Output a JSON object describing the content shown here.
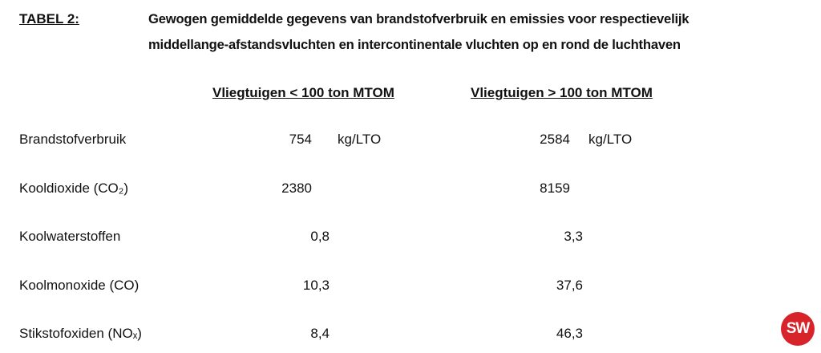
{
  "header": {
    "label": "TABEL 2:",
    "title_lines": [
      "Gewogen gemiddelde gegevens van brandstofverbruik en emissies voor respectievelijk",
      "middellange-afstandsvluchten en intercontinentale vluchten op en rond de luchthaven"
    ]
  },
  "table": {
    "columns": [
      "Vliegtuigen < 100 ton MTOM",
      "Vliegtuigen > 100 ton MTOM"
    ],
    "rows": [
      {
        "label": "Brandstofverbruik",
        "cells": [
          {
            "value": "754",
            "unit": "kg/LTO"
          },
          {
            "value": "2584",
            "unit": "kg/LTO"
          }
        ]
      },
      {
        "label": "Kooldioxide (CO₂)",
        "cells": [
          {
            "value": "2380"
          },
          {
            "value": "8159"
          }
        ]
      },
      {
        "label": "Koolwaterstoffen",
        "cells": [
          {
            "value": "0,8"
          },
          {
            "value": "3,3"
          }
        ]
      },
      {
        "label": "Koolmonoxide (CO)",
        "cells": [
          {
            "value": "10,3"
          },
          {
            "value": "37,6"
          }
        ]
      },
      {
        "label": "Stikstofoxiden (NOₓ)",
        "cells": [
          {
            "value": "8,4"
          },
          {
            "value": "46,3"
          }
        ]
      }
    ]
  },
  "logo": "SW"
}
